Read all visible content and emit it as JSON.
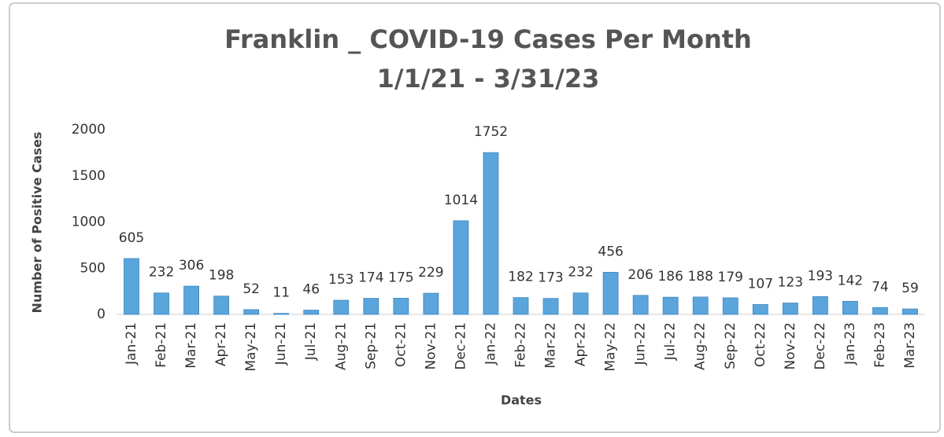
{
  "chart_data": {
    "type": "bar",
    "title": "Franklin _ COVID-19 Cases Per Month",
    "subtitle": "1/1/21 - 3/31/23",
    "y_label": "Number of Positive Cases",
    "x_label": "Dates",
    "categories": [
      "Jan-21",
      "Feb-21",
      "Mar-21",
      "Apr-21",
      "May-21",
      "Jun-21",
      "Jul-21",
      "Aug-21",
      "Sep-21",
      "Oct-21",
      "Nov-21",
      "Dec-21",
      "Jan-22",
      "Feb-22",
      "Mar-22",
      "Apr-22",
      "May-22",
      "Jun-22",
      "Jul-22",
      "Aug-22",
      "Sep-22",
      "Oct-22",
      "Nov-22",
      "Dec-22",
      "Jan-23",
      "Feb-23",
      "Mar-23"
    ],
    "values": [
      605,
      232,
      306,
      198,
      52,
      11,
      46,
      153,
      174,
      175,
      229,
      1014,
      1752,
      182,
      173,
      232,
      456,
      206,
      186,
      188,
      179,
      107,
      123,
      193,
      142,
      74,
      59
    ],
    "color": "#5aa5dc",
    "ylim": [
      0,
      2000
    ],
    "yticks": [
      0,
      500,
      1000,
      1500,
      2000
    ],
    "grid": false
  }
}
